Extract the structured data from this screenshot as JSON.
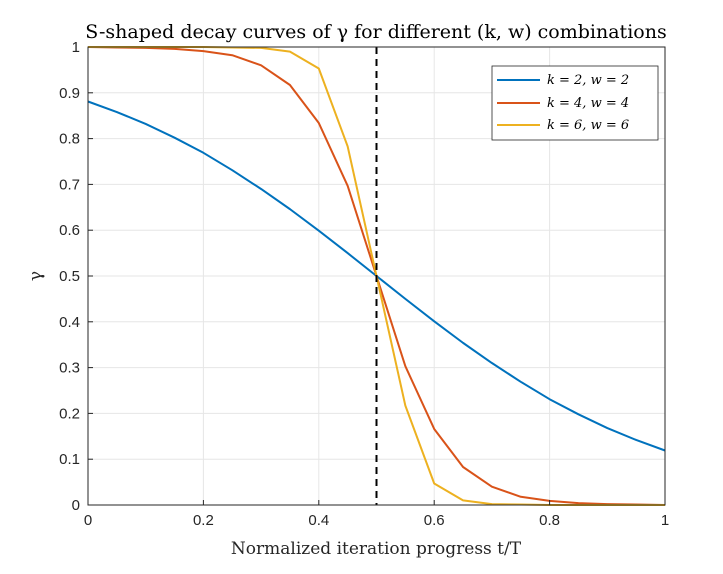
{
  "chart_data": {
    "type": "line",
    "title": "S-shaped decay curves of γ for different (k, w) combinations",
    "xlabel": "Normalized iteration progress t/T",
    "ylabel": "γ",
    "xlim": [
      0,
      1
    ],
    "ylim": [
      0,
      1
    ],
    "xticks": [
      "0",
      "0.2",
      "0.4",
      "0.6",
      "0.8",
      "1"
    ],
    "yticks": [
      "0",
      "0.1",
      "0.2",
      "0.3",
      "0.4",
      "0.5",
      "0.6",
      "0.7",
      "0.8",
      "0.9",
      "1"
    ],
    "grid": true,
    "legend_position": "top-right",
    "vline": {
      "x": 0.5,
      "style": "dashed",
      "color": "#000000"
    },
    "x": [
      0,
      0.05,
      0.1,
      0.15,
      0.2,
      0.25,
      0.3,
      0.35,
      0.4,
      0.45,
      0.5,
      0.55,
      0.6,
      0.65,
      0.7,
      0.75,
      0.8,
      0.85,
      0.9,
      0.95,
      1
    ],
    "series": [
      {
        "name": "k = 2, w = 2",
        "color": "#0072BD",
        "values": [
          0.881,
          0.858,
          0.832,
          0.802,
          0.769,
          0.731,
          0.69,
          0.646,
          0.599,
          0.55,
          0.5,
          0.45,
          0.401,
          0.354,
          0.31,
          0.269,
          0.231,
          0.198,
          0.168,
          0.142,
          0.119
        ]
      },
      {
        "name": "k = 4, w = 4",
        "color": "#D95319",
        "values": [
          1.0,
          0.999,
          0.998,
          0.996,
          0.991,
          0.982,
          0.96,
          0.917,
          0.834,
          0.697,
          0.5,
          0.303,
          0.166,
          0.083,
          0.04,
          0.018,
          0.009,
          0.004,
          0.002,
          0.001,
          0.0
        ]
      },
      {
        "name": "k = 6, w = 6",
        "color": "#EDB120",
        "values": [
          1.0,
          1.0,
          1.0,
          1.0,
          1.0,
          0.999,
          0.998,
          0.99,
          0.953,
          0.783,
          0.5,
          0.217,
          0.047,
          0.01,
          0.002,
          0.001,
          0.0,
          0.0,
          0.0,
          0.0,
          0.0
        ]
      }
    ],
    "legend_labels": [
      "k = 2, w = 2",
      "k = 4, w = 4",
      "k = 6, w = 6"
    ]
  }
}
